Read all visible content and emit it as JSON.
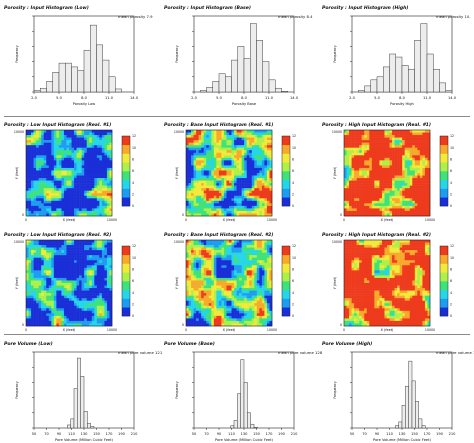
{
  "colors": {
    "bar_fill": "#ededed",
    "bar_stroke": "#2a2a2a",
    "colormap": [
      "#1a2fd8",
      "#1e9cf0",
      "#25d6e8",
      "#3fe27a",
      "#aef04a",
      "#f2ea3a",
      "#f7a92c",
      "#ee3a1d"
    ]
  },
  "chart_data": [
    {
      "type": "bar",
      "title": "Porosity : Input Histogram (Low)",
      "annotation": "mean porosity 7.9",
      "xlabel": "Porosity Low",
      "ylabel": "Frequency",
      "xlim": [
        2.0,
        14.0
      ],
      "xticks": [
        "2.0",
        "5.0",
        "8.0",
        "11.0",
        "14.0"
      ],
      "bin_edges": [
        2.0,
        2.75,
        3.5,
        4.25,
        5.0,
        5.75,
        6.5,
        7.25,
        8.0,
        8.75,
        9.5,
        10.25,
        11.0,
        11.75,
        12.5,
        13.25,
        14.0
      ],
      "values": [
        0.02,
        0.05,
        0.14,
        0.26,
        0.38,
        0.38,
        0.33,
        0.28,
        0.55,
        0.88,
        0.62,
        0.42,
        0.2,
        0.04,
        0.0,
        0.0
      ],
      "ylim": [
        0,
        1
      ]
    },
    {
      "type": "bar",
      "title": "Porosity : Input Histogram (Base)",
      "annotation": "mean porosity 8.4",
      "xlabel": "Porosity Base",
      "ylabel": "Frequency",
      "xlim": [
        2.0,
        14.0
      ],
      "xticks": [
        "2.0",
        "5.0",
        "8.0",
        "11.0",
        "14.0"
      ],
      "bin_edges": [
        2.0,
        2.75,
        3.5,
        4.25,
        5.0,
        5.75,
        6.5,
        7.25,
        8.0,
        8.75,
        9.5,
        10.25,
        11.0,
        11.75,
        12.5,
        13.25,
        14.0
      ],
      "values": [
        0.0,
        0.02,
        0.06,
        0.14,
        0.24,
        0.2,
        0.42,
        0.6,
        0.44,
        0.9,
        0.68,
        0.4,
        0.16,
        0.05,
        0.01,
        0.0
      ],
      "ylim": [
        0,
        1
      ]
    },
    {
      "type": "bar",
      "title": "Porosity : Input Histogram (High)",
      "annotation": "mean porosity 10.",
      "xlabel": "Porosity High",
      "ylabel": "Frequency",
      "xlim": [
        2.0,
        14.0
      ],
      "xticks": [
        "2.0",
        "5.0",
        "8.0",
        "11.0",
        "14.0"
      ],
      "bin_edges": [
        2.0,
        2.75,
        3.5,
        4.25,
        5.0,
        5.75,
        6.5,
        7.25,
        8.0,
        8.75,
        9.5,
        10.25,
        11.0,
        11.75,
        12.5,
        13.25,
        14.0
      ],
      "values": [
        0.0,
        0.02,
        0.08,
        0.16,
        0.2,
        0.33,
        0.5,
        0.46,
        0.35,
        0.3,
        0.68,
        0.9,
        0.5,
        0.3,
        0.12,
        0.02
      ],
      "ylim": [
        0,
        1
      ]
    },
    {
      "type": "heatmap",
      "title": "Porosity : Low Input Histogram (Real. #1)",
      "xlabel": "X (feet)",
      "ylabel": "Y (feet)",
      "xticks": [
        "0",
        "10000"
      ],
      "yticks": [
        "0",
        "10000"
      ],
      "colorbar": {
        "min": 0,
        "max": 12,
        "ticks": [
          "0",
          "2",
          "4",
          "6",
          "8",
          "10",
          "12"
        ]
      },
      "seed": 3,
      "offset": -0.35
    },
    {
      "type": "heatmap",
      "title": "Porosity : Base Input Histogram (Real. #1)",
      "xlabel": "X (feet)",
      "ylabel": "Y (feet)",
      "xticks": [
        "0",
        "10000"
      ],
      "yticks": [
        "0",
        "10000"
      ],
      "colorbar": {
        "min": 0,
        "max": 12,
        "ticks": [
          "0",
          "2",
          "4",
          "6",
          "8",
          "10",
          "12"
        ]
      },
      "seed": 3,
      "offset": -0.05
    },
    {
      "type": "heatmap",
      "title": "Porosity : High Input Histogram (Real. #1)",
      "xlabel": "X (feet)",
      "ylabel": "Y (feet)",
      "xticks": [
        "0",
        "10000"
      ],
      "yticks": [
        "0",
        "10000"
      ],
      "colorbar": {
        "min": 0,
        "max": 12,
        "ticks": [
          "0",
          "2",
          "4",
          "6",
          "8",
          "10",
          "12"
        ]
      },
      "seed": 3,
      "offset": 0.45
    },
    {
      "type": "heatmap",
      "title": "Porosity : Low Input Histogram (Real. #2)",
      "xlabel": "X (feet)",
      "ylabel": "Y (feet)",
      "xticks": [
        "0",
        "10000"
      ],
      "yticks": [
        "0",
        "10000"
      ],
      "colorbar": {
        "min": 0,
        "max": 12,
        "ticks": [
          "0",
          "2",
          "4",
          "6",
          "8",
          "10",
          "12"
        ]
      },
      "seed": 11,
      "offset": -0.35
    },
    {
      "type": "heatmap",
      "title": "Porosity : Base Input Histogram (Real. #2)",
      "xlabel": "X (feet)",
      "ylabel": "Y (feet)",
      "xticks": [
        "0",
        "10000"
      ],
      "yticks": [
        "0",
        "10000"
      ],
      "colorbar": {
        "min": 0,
        "max": 12,
        "ticks": [
          "0",
          "2",
          "4",
          "6",
          "8",
          "10",
          "12"
        ]
      },
      "seed": 11,
      "offset": -0.05
    },
    {
      "type": "heatmap",
      "title": "Porosity : High Input Histogram (Real. #2)",
      "xlabel": "X (feet)",
      "ylabel": "Y (feet)",
      "xticks": [
        "0",
        "10000"
      ],
      "yticks": [
        "0",
        "10000"
      ],
      "colorbar": {
        "min": 0,
        "max": 12,
        "ticks": [
          "0",
          "2",
          "4",
          "6",
          "8",
          "10",
          "12"
        ]
      },
      "seed": 11,
      "offset": 0.45
    },
    {
      "type": "bar",
      "title": "Pore Volume (Low)",
      "annotation": "mean pore volume 121",
      "xlabel": "Pore Volume (Million Cubic Feet)",
      "ylabel": "Frequency",
      "xlim": [
        50,
        200
      ],
      "xticks": [
        "50",
        "70",
        "90",
        "110",
        "130",
        "150",
        "170",
        "190",
        "210"
      ],
      "bin_edges": [
        100,
        105,
        110,
        115,
        120,
        125,
        130,
        135,
        140
      ],
      "values": [
        0.04,
        0.12,
        0.52,
        0.92,
        0.68,
        0.22,
        0.06,
        0.02
      ],
      "ylim": [
        0,
        1
      ]
    },
    {
      "type": "bar",
      "title": "Pore Volume (Base)",
      "annotation": "mean pore volume 128",
      "xlabel": "Pore Volume (Million Cubic Feet)",
      "ylabel": "Frequency",
      "xlim": [
        50,
        200
      ],
      "xticks": [
        "50",
        "70",
        "90",
        "110",
        "130",
        "150",
        "170",
        "190",
        "210"
      ],
      "bin_edges": [
        105,
        110,
        115,
        120,
        125,
        130,
        135,
        140,
        145
      ],
      "values": [
        0.03,
        0.1,
        0.45,
        0.9,
        0.6,
        0.2,
        0.05,
        0.01
      ],
      "ylim": [
        0,
        1
      ]
    },
    {
      "type": "bar",
      "title": "Pore Volume (High)",
      "annotation": "mean pore volume 141",
      "xlabel": "Pore Volume (Million Cubic Feet)",
      "ylabel": "Frequency",
      "xlim": [
        50,
        200
      ],
      "xticks": [
        "50",
        "70",
        "90",
        "110",
        "130",
        "150",
        "170",
        "190",
        "210"
      ],
      "bin_edges": [
        115,
        120,
        125,
        130,
        135,
        140,
        145,
        150,
        155,
        160
      ],
      "values": [
        0.03,
        0.08,
        0.3,
        0.55,
        0.88,
        0.62,
        0.35,
        0.12,
        0.03
      ],
      "ylim": [
        0,
        1
      ]
    }
  ]
}
